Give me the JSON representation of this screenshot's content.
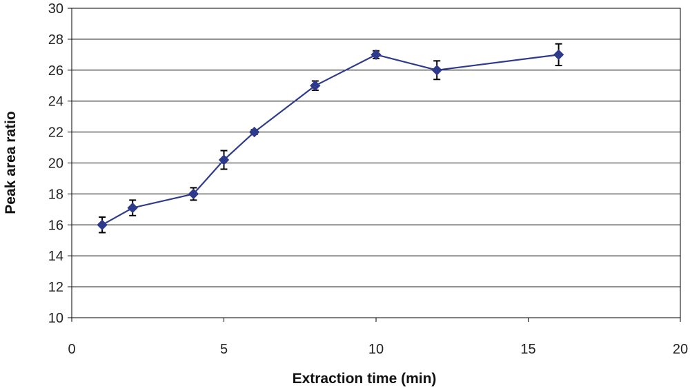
{
  "chart_data": {
    "type": "line",
    "title": "",
    "xlabel": "Extraction time (min)",
    "ylabel": "Peak area ratio",
    "xlim": [
      0,
      20
    ],
    "ylim": [
      10,
      30
    ],
    "x_ticks": [
      "0",
      "5",
      "10",
      "15",
      "20"
    ],
    "y_ticks": [
      "10",
      "12",
      "14",
      "16",
      "18",
      "20",
      "22",
      "24",
      "26",
      "28",
      "30"
    ],
    "grid": "horizontal",
    "legend": "none",
    "series": [
      {
        "color": "#2e3a8c",
        "marker": "diamond",
        "points": [
          {
            "x": 1,
            "y": 16.0,
            "err": 0.5
          },
          {
            "x": 2,
            "y": 17.1,
            "err": 0.5
          },
          {
            "x": 4,
            "y": 18.0,
            "err": 0.4
          },
          {
            "x": 5,
            "y": 20.2,
            "err": 0.6
          },
          {
            "x": 6,
            "y": 22.0,
            "err": 0.15
          },
          {
            "x": 8,
            "y": 25.0,
            "err": 0.3
          },
          {
            "x": 10,
            "y": 27.0,
            "err": 0.25
          },
          {
            "x": 12,
            "y": 26.0,
            "err": 0.6
          },
          {
            "x": 16,
            "y": 27.0,
            "err": 0.7
          }
        ]
      }
    ]
  }
}
